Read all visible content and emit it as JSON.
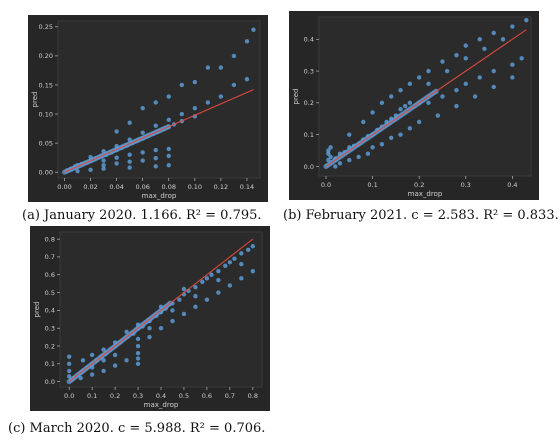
{
  "captions": [
    "(a) January 2020. 1.166. R² = 0.795.",
    "(b) February 2021. c = 2.583. R² = 0.833.",
    "(c) March 2020. c = 5.988. R² = 0.706."
  ],
  "style": {
    "panel_bg": "#262626",
    "plot_bg": "#2b2b2b",
    "axis_text": "#cfcfcf",
    "point_color": "#5b9bd5",
    "fit_color": "#d94a3d"
  },
  "chart_data": [
    {
      "type": "scatter",
      "title": "",
      "xlabel": "max_drop",
      "ylabel": "pred",
      "xlim": [
        -0.005,
        0.15
      ],
      "ylim": [
        -0.01,
        0.26
      ],
      "xticks": [
        "0.00",
        "0.02",
        "0.04",
        "0.06",
        "0.08",
        "0.10",
        "0.12",
        "0.14"
      ],
      "yticks": [
        "0.00",
        "0.05",
        "0.10",
        "0.15",
        "0.20",
        "0.25"
      ],
      "xtick_values": [
        0,
        0.02,
        0.04,
        0.06,
        0.08,
        0.1,
        0.12,
        0.14
      ],
      "ytick_values": [
        0,
        0.05,
        0.1,
        0.15,
        0.2,
        0.25
      ],
      "fit_line": {
        "x": [
          0,
          0.145
        ],
        "y": [
          0,
          0.142
        ]
      },
      "series": [
        {
          "points": [
            [
              0.002,
              0.003
            ],
            [
              0.005,
              0.006
            ],
            [
              0.008,
              0.01
            ],
            [
              0.01,
              0.012
            ],
            [
              0.013,
              0.014
            ],
            [
              0.016,
              0.016
            ],
            [
              0.02,
              0.02
            ],
            [
              0.02,
              0.026
            ],
            [
              0.024,
              0.024
            ],
            [
              0.028,
              0.028
            ],
            [
              0.03,
              0.036
            ],
            [
              0.032,
              0.03
            ],
            [
              0.036,
              0.034
            ],
            [
              0.04,
              0.038
            ],
            [
              0.04,
              0.045
            ],
            [
              0.044,
              0.042
            ],
            [
              0.048,
              0.046
            ],
            [
              0.05,
              0.056
            ],
            [
              0.052,
              0.05
            ],
            [
              0.056,
              0.054
            ],
            [
              0.06,
              0.058
            ],
            [
              0.06,
              0.068
            ],
            [
              0.064,
              0.062
            ],
            [
              0.068,
              0.066
            ],
            [
              0.07,
              0.08
            ],
            [
              0.072,
              0.07
            ],
            [
              0.076,
              0.074
            ],
            [
              0.08,
              0.078
            ],
            [
              0.08,
              0.09
            ],
            [
              0.084,
              0.082
            ],
            [
              0.09,
              0.1
            ],
            [
              0.09,
              0.088
            ],
            [
              0.1,
              0.11
            ],
            [
              0.1,
              0.096
            ],
            [
              0.11,
              0.12
            ],
            [
              0.12,
              0.13
            ],
            [
              0.13,
              0.15
            ],
            [
              0.14,
              0.16
            ],
            [
              0.06,
              0.11
            ],
            [
              0.08,
              0.13
            ],
            [
              0.1,
              0.155
            ],
            [
              0.12,
              0.18
            ],
            [
              0.13,
              0.2
            ],
            [
              0.14,
              0.225
            ],
            [
              0.145,
              0.245
            ],
            [
              0.04,
              0.07
            ],
            [
              0.05,
              0.085
            ],
            [
              0.07,
              0.12
            ],
            [
              0.09,
              0.15
            ],
            [
              0.11,
              0.18
            ],
            [
              0.03,
              0.012
            ],
            [
              0.04,
              0.015
            ],
            [
              0.05,
              0.018
            ],
            [
              0.06,
              0.02
            ],
            [
              0.07,
              0.024
            ],
            [
              0.08,
              0.028
            ],
            [
              0.03,
              0.02
            ],
            [
              0.04,
              0.025
            ],
            [
              0.05,
              0.03
            ],
            [
              0.06,
              0.034
            ],
            [
              0.07,
              0.038
            ],
            [
              0.08,
              0.04
            ],
            [
              0.03,
              0.006
            ],
            [
              0.05,
              0.008
            ],
            [
              0.07,
              0.01
            ],
            [
              0.08,
              0.012
            ],
            [
              0.02,
              0.004
            ],
            [
              0.01,
              0.002
            ]
          ]
        }
      ]
    },
    {
      "type": "scatter",
      "title": "",
      "xlabel": "max_drop",
      "ylabel": "pred",
      "xlim": [
        -0.015,
        0.44
      ],
      "ylim": [
        -0.03,
        0.47
      ],
      "xticks": [
        "0.0",
        "0.1",
        "0.2",
        "0.3",
        "0.4"
      ],
      "yticks": [
        "0.0",
        "0.1",
        "0.2",
        "0.3",
        "0.4"
      ],
      "xtick_values": [
        0,
        0.1,
        0.2,
        0.3,
        0.4
      ],
      "ytick_values": [
        0,
        0.1,
        0.2,
        0.3,
        0.4
      ],
      "fit_line": {
        "x": [
          0,
          0.43
        ],
        "y": [
          0,
          0.43
        ]
      },
      "series": [
        {
          "points": [
            [
              0.005,
              0.02
            ],
            [
              0.01,
              0.03
            ],
            [
              0.02,
              0.025
            ],
            [
              0.03,
              0.04
            ],
            [
              0.04,
              0.045
            ],
            [
              0.05,
              0.06
            ],
            [
              0.06,
              0.065
            ],
            [
              0.07,
              0.07
            ],
            [
              0.08,
              0.085
            ],
            [
              0.09,
              0.095
            ],
            [
              0.1,
              0.1
            ],
            [
              0.11,
              0.115
            ],
            [
              0.12,
              0.125
            ],
            [
              0.13,
              0.14
            ],
            [
              0.14,
              0.15
            ],
            [
              0.15,
              0.16
            ],
            [
              0.16,
              0.18
            ],
            [
              0.17,
              0.19
            ],
            [
              0.18,
              0.2
            ],
            [
              0.05,
              0.1
            ],
            [
              0.08,
              0.14
            ],
            [
              0.1,
              0.17
            ],
            [
              0.12,
              0.2
            ],
            [
              0.14,
              0.22
            ],
            [
              0.16,
              0.24
            ],
            [
              0.18,
              0.26
            ],
            [
              0.2,
              0.28
            ],
            [
              0.22,
              0.3
            ],
            [
              0.25,
              0.33
            ],
            [
              0.28,
              0.35
            ],
            [
              0.3,
              0.38
            ],
            [
              0.33,
              0.4
            ],
            [
              0.36,
              0.42
            ],
            [
              0.4,
              0.44
            ],
            [
              0.43,
              0.46
            ],
            [
              0.2,
              0.2
            ],
            [
              0.22,
              0.2
            ],
            [
              0.25,
              0.22
            ],
            [
              0.28,
              0.24
            ],
            [
              0.3,
              0.26
            ],
            [
              0.33,
              0.28
            ],
            [
              0.36,
              0.3
            ],
            [
              0.4,
              0.32
            ],
            [
              0.42,
              0.34
            ],
            [
              0.2,
              0.14
            ],
            [
              0.24,
              0.16
            ],
            [
              0.28,
              0.19
            ],
            [
              0.32,
              0.22
            ],
            [
              0.36,
              0.25
            ],
            [
              0.4,
              0.28
            ],
            [
              0.1,
              0.06
            ],
            [
              0.12,
              0.07
            ],
            [
              0.14,
              0.09
            ],
            [
              0.16,
              0.1
            ],
            [
              0.18,
              0.12
            ],
            [
              0.005,
              0.05
            ],
            [
              0.01,
              0.06
            ],
            [
              0.005,
              0.04
            ],
            [
              0.02,
              0.0
            ],
            [
              0.03,
              0.01
            ],
            [
              0.05,
              0.02
            ],
            [
              0.07,
              0.03
            ],
            [
              0.09,
              0.04
            ],
            [
              0.22,
              0.26
            ],
            [
              0.26,
              0.3
            ],
            [
              0.3,
              0.34
            ],
            [
              0.34,
              0.37
            ],
            [
              0.38,
              0.4
            ]
          ]
        }
      ]
    },
    {
      "type": "scatter",
      "title": "",
      "xlabel": "max_drop",
      "ylabel": "pred",
      "xlim": [
        -0.04,
        0.84
      ],
      "ylim": [
        -0.03,
        0.84
      ],
      "xticks": [
        "0.0",
        "0.1",
        "0.2",
        "0.3",
        "0.4",
        "0.5",
        "0.6",
        "0.7",
        "0.8"
      ],
      "yticks": [
        "0.0",
        "0.1",
        "0.2",
        "0.3",
        "0.4",
        "0.5",
        "0.6",
        "0.7",
        "0.8"
      ],
      "xtick_values": [
        0,
        0.1,
        0.2,
        0.3,
        0.4,
        0.5,
        0.6,
        0.7,
        0.8
      ],
      "ytick_values": [
        0,
        0.1,
        0.2,
        0.3,
        0.4,
        0.5,
        0.6,
        0.7,
        0.8
      ],
      "fit_line": {
        "x": [
          0,
          0.8
        ],
        "y": [
          0,
          0.8
        ]
      },
      "series": [
        {
          "points": [
            [
              0.0,
              0.14
            ],
            [
              0.0,
              0.1
            ],
            [
              0.0,
              0.06
            ],
            [
              0.0,
              0.03
            ],
            [
              0.01,
              0.01
            ],
            [
              0.02,
              0.02
            ],
            [
              0.04,
              0.04
            ],
            [
              0.06,
              0.06
            ],
            [
              0.08,
              0.08
            ],
            [
              0.1,
              0.1
            ],
            [
              0.12,
              0.12
            ],
            [
              0.14,
              0.14
            ],
            [
              0.16,
              0.16
            ],
            [
              0.18,
              0.18
            ],
            [
              0.2,
              0.2
            ],
            [
              0.22,
              0.22
            ],
            [
              0.25,
              0.25
            ],
            [
              0.28,
              0.27
            ],
            [
              0.3,
              0.3
            ],
            [
              0.32,
              0.31
            ],
            [
              0.35,
              0.34
            ],
            [
              0.38,
              0.37
            ],
            [
              0.4,
              0.39
            ],
            [
              0.42,
              0.41
            ],
            [
              0.45,
              0.44
            ],
            [
              0.48,
              0.46
            ],
            [
              0.5,
              0.49
            ],
            [
              0.52,
              0.51
            ],
            [
              0.55,
              0.53
            ],
            [
              0.58,
              0.56
            ],
            [
              0.6,
              0.58
            ],
            [
              0.62,
              0.6
            ],
            [
              0.65,
              0.62
            ],
            [
              0.68,
              0.65
            ],
            [
              0.7,
              0.67
            ],
            [
              0.72,
              0.69
            ],
            [
              0.75,
              0.72
            ],
            [
              0.78,
              0.74
            ],
            [
              0.8,
              0.76
            ],
            [
              0.3,
              0.2
            ],
            [
              0.35,
              0.25
            ],
            [
              0.4,
              0.3
            ],
            [
              0.45,
              0.34
            ],
            [
              0.5,
              0.38
            ],
            [
              0.55,
              0.42
            ],
            [
              0.6,
              0.46
            ],
            [
              0.65,
              0.5
            ],
            [
              0.7,
              0.54
            ],
            [
              0.75,
              0.58
            ],
            [
              0.8,
              0.62
            ],
            [
              0.3,
              0.1
            ],
            [
              0.3,
              0.13
            ],
            [
              0.3,
              0.16
            ],
            [
              0.25,
              0.12
            ],
            [
              0.2,
              0.09
            ],
            [
              0.15,
              0.06
            ],
            [
              0.1,
              0.04
            ],
            [
              0.05,
              0.02
            ],
            [
              0.2,
              0.15
            ],
            [
              0.15,
              0.12
            ],
            [
              0.1,
              0.08
            ],
            [
              0.05,
              0.05
            ],
            [
              0.06,
              0.12
            ],
            [
              0.1,
              0.15
            ],
            [
              0.15,
              0.18
            ],
            [
              0.2,
              0.22
            ],
            [
              0.25,
              0.28
            ],
            [
              0.3,
              0.32
            ],
            [
              0.4,
              0.42
            ],
            [
              0.5,
              0.52
            ],
            [
              0.3,
              0.24
            ],
            [
              0.35,
              0.3
            ],
            [
              0.45,
              0.4
            ],
            [
              0.55,
              0.48
            ],
            [
              0.65,
              0.57
            ],
            [
              0.75,
              0.66
            ]
          ]
        }
      ]
    }
  ]
}
